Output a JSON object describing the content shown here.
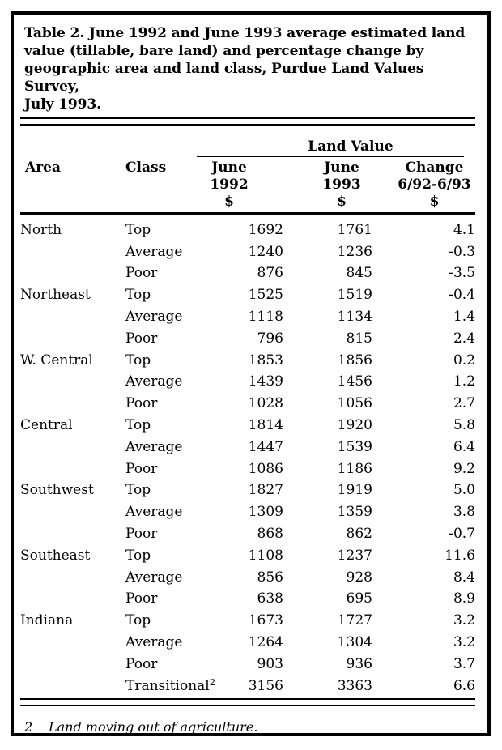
{
  "colors": {
    "background": "#ffffff",
    "text": "#000000",
    "border": "#000000"
  },
  "title_lines": [
    "Table 2. June 1992 and June 1993 average estimated land",
    "value (tillable, bare land) and percentage change by",
    "geographic area and land class, Purdue Land Values Survey,",
    "July 1993."
  ],
  "table": {
    "span_header": "Land Value",
    "columns": {
      "area": "Area",
      "land_class": "Class",
      "june_1992": [
        "June",
        "1992",
        "$"
      ],
      "june_1993": [
        "June",
        "1993",
        "$"
      ],
      "change": [
        "Change",
        "6/92-6/93",
        "$"
      ]
    },
    "rows": [
      {
        "area": "North",
        "land_class": "Top",
        "june_1992": "1692",
        "june_1993": "1761",
        "change": "4.1"
      },
      {
        "area": "",
        "land_class": "Average",
        "june_1992": "1240",
        "june_1993": "1236",
        "change": "-0.3"
      },
      {
        "area": "",
        "land_class": "Poor",
        "june_1992": "876",
        "june_1993": "845",
        "change": "-3.5"
      },
      {
        "area": "Northeast",
        "land_class": "Top",
        "june_1992": "1525",
        "june_1993": "1519",
        "change": "-0.4"
      },
      {
        "area": "",
        "land_class": "Average",
        "june_1992": "1118",
        "june_1993": "1134",
        "change": "1.4"
      },
      {
        "area": "",
        "land_class": "Poor",
        "june_1992": "796",
        "june_1993": "815",
        "change": "2.4"
      },
      {
        "area": "W. Central",
        "land_class": "Top",
        "june_1992": "1853",
        "june_1993": "1856",
        "change": "0.2"
      },
      {
        "area": "",
        "land_class": "Average",
        "june_1992": "1439",
        "june_1993": "1456",
        "change": "1.2"
      },
      {
        "area": "",
        "land_class": "Poor",
        "june_1992": "1028",
        "june_1993": "1056",
        "change": "2.7"
      },
      {
        "area": "Central",
        "land_class": "Top",
        "june_1992": "1814",
        "june_1993": "1920",
        "change": "5.8"
      },
      {
        "area": "",
        "land_class": "Average",
        "june_1992": "1447",
        "june_1993": "1539",
        "change": "6.4"
      },
      {
        "area": "",
        "land_class": "Poor",
        "june_1992": "1086",
        "june_1993": "1186",
        "change": "9.2"
      },
      {
        "area": "Southwest",
        "land_class": "Top",
        "june_1992": "1827",
        "june_1993": "1919",
        "change": "5.0"
      },
      {
        "area": "",
        "land_class": "Average",
        "june_1992": "1309",
        "june_1993": "1359",
        "change": "3.8"
      },
      {
        "area": "",
        "land_class": "Poor",
        "june_1992": "868",
        "june_1993": "862",
        "change": "-0.7"
      },
      {
        "area": "Southeast",
        "land_class": "Top",
        "june_1992": "1108",
        "june_1993": "1237",
        "change": "11.6"
      },
      {
        "area": "",
        "land_class": "Average",
        "june_1992": "856",
        "june_1993": "928",
        "change": "8.4"
      },
      {
        "area": "",
        "land_class": "Poor",
        "june_1992": "638",
        "june_1993": "695",
        "change": "8.9"
      },
      {
        "area": "Indiana",
        "land_class": "Top",
        "june_1992": "1673",
        "june_1993": "1727",
        "change": "3.2"
      },
      {
        "area": "",
        "land_class": "Average",
        "june_1992": "1264",
        "june_1993": "1304",
        "change": "3.2"
      },
      {
        "area": "",
        "land_class": "Poor",
        "june_1992": "903",
        "june_1993": "936",
        "change": "3.7"
      },
      {
        "area": "",
        "land_class": "Transitional",
        "class_superscript": "2",
        "june_1992": "3156",
        "june_1993": "3363",
        "change": "6.6"
      }
    ]
  },
  "footnote": {
    "marker": "2",
    "text": "Land moving out of agriculture."
  }
}
